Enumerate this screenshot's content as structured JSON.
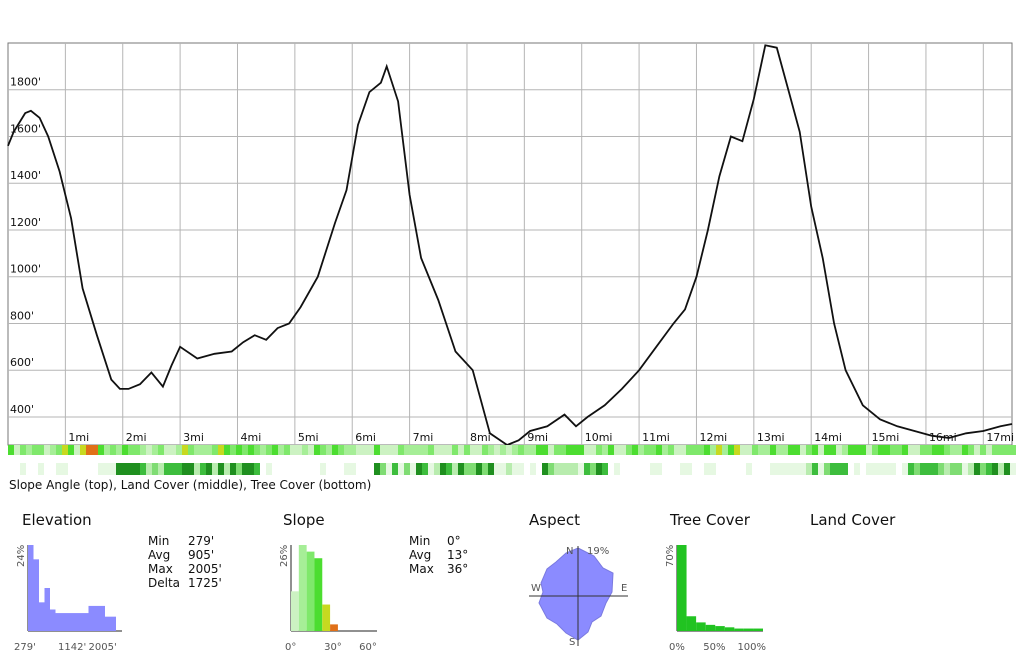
{
  "chart_data": [
    {
      "type": "line",
      "x_unit": "mi",
      "y_unit": "'",
      "xlim": [
        0,
        17.5
      ],
      "ylim": [
        280,
        2000
      ],
      "x_ticks": [
        1,
        2,
        3,
        4,
        5,
        6,
        7,
        8,
        9,
        10,
        11,
        12,
        13,
        14,
        15,
        16,
        17
      ],
      "x_tick_labels": [
        "1mi",
        "2mi",
        "3mi",
        "4mi",
        "5mi",
        "6mi",
        "7mi",
        "8mi",
        "9mi",
        "10mi",
        "11mi",
        "12mi",
        "13mi",
        "14mi",
        "15mi",
        "16mi",
        "17mi"
      ],
      "y_ticks": [
        400,
        600,
        800,
        1000,
        1200,
        1400,
        1600,
        1800
      ],
      "y_tick_labels": [
        "400'",
        "600'",
        "800'",
        "1000'",
        "1200'",
        "1400'",
        "1600'",
        "1800'"
      ],
      "grid": true,
      "series": [
        {
          "x": [
            0,
            0.1,
            0.3,
            0.4,
            0.55,
            0.7,
            0.9,
            1.1,
            1.3,
            1.55,
            1.8,
            1.95,
            2.1,
            2.3,
            2.5,
            2.7,
            2.85,
            3.0,
            3.3,
            3.6,
            3.9,
            4.1,
            4.3,
            4.5,
            4.7,
            4.9,
            5.1,
            5.4,
            5.7,
            5.9,
            6.1,
            6.3,
            6.5,
            6.6,
            6.8,
            7.0,
            7.2,
            7.5,
            7.8,
            8.1,
            8.4,
            8.7,
            8.9,
            9.1,
            9.4,
            9.7,
            9.9,
            10.1,
            10.4,
            10.7,
            11.0,
            11.3,
            11.6,
            11.8,
            12.0,
            12.2,
            12.4,
            12.6,
            12.8,
            13.0,
            13.2,
            13.4,
            13.6,
            13.8,
            14.0,
            14.2,
            14.4,
            14.6,
            14.9,
            15.2,
            15.5,
            15.8,
            16.1,
            16.4,
            16.7,
            17.0,
            17.3,
            17.5
          ],
          "y": [
            1560,
            1620,
            1700,
            1710,
            1680,
            1600,
            1450,
            1250,
            950,
            750,
            560,
            520,
            520,
            540,
            590,
            530,
            620,
            700,
            650,
            670,
            680,
            720,
            750,
            730,
            780,
            800,
            870,
            1000,
            1230,
            1370,
            1650,
            1790,
            1830,
            1900,
            1750,
            1350,
            1080,
            900,
            680,
            600,
            330,
            280,
            300,
            340,
            360,
            410,
            360,
            400,
            450,
            520,
            600,
            700,
            800,
            860,
            1000,
            1200,
            1430,
            1600,
            1580,
            1760,
            1990,
            1980,
            1800,
            1620,
            1300,
            1080,
            800,
            600,
            450,
            390,
            360,
            340,
            320,
            310,
            330,
            340,
            360,
            370
          ]
        }
      ]
    },
    {
      "type": "bar",
      "categories": [
        "279'",
        "",
        "",
        "",
        "",
        "",
        "",
        "",
        "1142'",
        "",
        "",
        "",
        "",
        "",
        "",
        "2005'"
      ],
      "values": [
        24,
        20,
        8,
        12,
        6,
        5,
        5,
        5,
        5,
        5,
        5,
        7,
        7,
        7,
        4,
        4
      ],
      "y_tick_labels": [
        "24%"
      ],
      "color": "#8b8bff"
    },
    {
      "type": "bar",
      "categories": [
        "0°",
        "",
        "",
        "",
        "",
        "30°",
        "",
        "",
        "",
        "",
        "60°"
      ],
      "values": [
        12,
        26,
        24,
        22,
        8,
        2,
        0,
        0,
        0,
        0,
        0
      ],
      "colors": [
        "#ccf2c2",
        "#a6ee97",
        "#7fe86b",
        "#4cdd30",
        "#c7d920",
        "#e07018",
        "#ffffff",
        "#ffffff",
        "#ffffff",
        "#ffffff",
        "#ffffff"
      ],
      "y_tick_labels": [
        "26%"
      ]
    },
    {
      "type": "bar",
      "categories": [
        "0%",
        "",
        "",
        "",
        "50%",
        "",
        "",
        "",
        "100%"
      ],
      "values": [
        70,
        12,
        7,
        5,
        4,
        3,
        2,
        2,
        2
      ],
      "color": "#21c321",
      "y_tick_labels": [
        "70%"
      ]
    }
  ],
  "strip_caption": "Slope Angle (top), Land Cover (middle), Tree Cover (bottom)",
  "stats": {
    "elevation": {
      "title": "Elevation",
      "rows": [
        {
          "label": "Min",
          "value": "279'"
        },
        {
          "label": "Avg",
          "value": "905'"
        },
        {
          "label": "Max",
          "value": "2005'"
        },
        {
          "label": "Delta",
          "value": "1725'"
        }
      ]
    },
    "slope": {
      "title": "Slope",
      "rows": [
        {
          "label": "Min",
          "value": "0°"
        },
        {
          "label": "Avg",
          "value": "13°"
        },
        {
          "label": "Max",
          "value": "36°"
        }
      ]
    },
    "aspect": {
      "title": "Aspect",
      "n_label": "N",
      "max_label": "19%",
      "s_label": "S",
      "e_label": "E",
      "w_label": "W"
    },
    "tree_cover": {
      "title": "Tree Cover"
    },
    "land_cover": {
      "title": "Land Cover"
    }
  },
  "colors": {
    "line": "#111111",
    "elev_bar": "#8b8bff",
    "tree_bar": "#21c321",
    "grid": "#b5b5b5"
  }
}
